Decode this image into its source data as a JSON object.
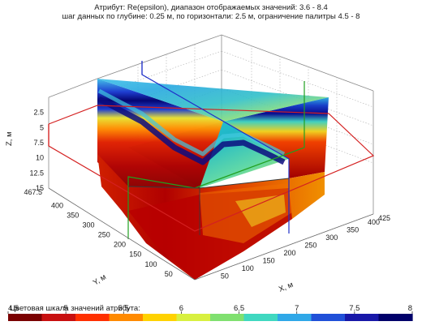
{
  "header": {
    "line1": "Атрибут: Re(epsilon), диапазон отображаемых значений: 3.6 - 8.4",
    "line2": "шаг данных по глубине: 0.25 м, по горизонтали: 2.5 м, ограничение палитры 4.5 - 8"
  },
  "chart_data": {
    "type": "heatmap",
    "subtype": "3d-volume-slices",
    "attribute": "Re(epsilon)",
    "value_range": [
      3.6,
      8.4
    ],
    "palette_limits": [
      4.5,
      8
    ],
    "z_axis": {
      "label": "Z, м",
      "ticks": [
        "2.5",
        "5",
        "7.5",
        "10",
        "12.5",
        "15"
      ],
      "range": [
        0,
        15
      ],
      "inverted": true
    },
    "y_axis": {
      "label": "Y, м",
      "ticks": [
        "467.5",
        "400",
        "350",
        "300",
        "250",
        "200",
        "150",
        "100",
        "50"
      ],
      "range": [
        0,
        467.5
      ]
    },
    "x_axis": {
      "label": "X, м",
      "ticks": [
        "50",
        "100",
        "150",
        "200",
        "250",
        "300",
        "350",
        "400",
        "425"
      ],
      "range": [
        0,
        425
      ]
    },
    "slice_outline_colors": {
      "x_slice": "#d42020",
      "y_slice": "#2030c8",
      "z_slice": "#20a020"
    },
    "grid": true
  },
  "colorbar": {
    "label": "Цветовая шкала значений атрибута:",
    "ticks": [
      "4.5",
      "5",
      "5.5",
      "6",
      "6.5",
      "7",
      "7.5",
      "8"
    ],
    "min": 4.5,
    "max": 8,
    "colors": [
      "#7a0000",
      "#c81010",
      "#ff3000",
      "#ff8a00",
      "#ffd200",
      "#d8f040",
      "#80e070",
      "#40d8c0",
      "#30a8e8",
      "#2050d8",
      "#1818a8",
      "#00006a"
    ]
  }
}
